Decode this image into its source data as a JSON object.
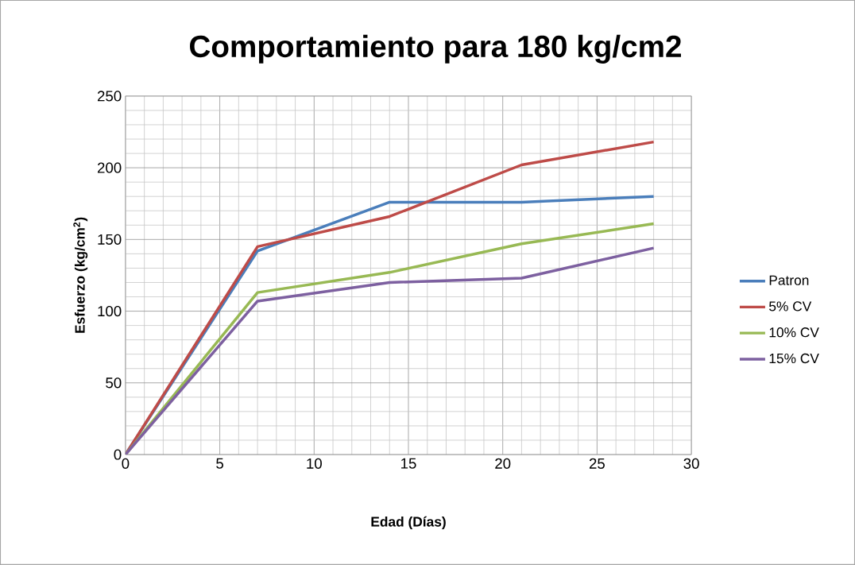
{
  "chart_data": {
    "type": "line",
    "title": "Comportamiento para 180 kg/cm2",
    "xlabel": "Edad (Días)",
    "ylabel": "Esfuerzo (kg/cm$^{2}$)",
    "x": [
      0,
      7,
      14,
      21,
      28
    ],
    "series": [
      {
        "name": "Patron",
        "color": "#4a7ebb",
        "values": [
          0,
          142,
          176,
          176,
          180
        ]
      },
      {
        "name": "5% CV",
        "color": "#be4b48",
        "values": [
          0,
          145,
          166,
          202,
          218
        ]
      },
      {
        "name": "10% CV",
        "color": "#98b954",
        "values": [
          0,
          113,
          127,
          147,
          161
        ]
      },
      {
        "name": "15% CV",
        "color": "#7d60a0",
        "values": [
          0,
          107,
          120,
          123,
          144
        ]
      }
    ],
    "xlim": [
      0,
      30
    ],
    "ylim": [
      0,
      250
    ],
    "xticks": [
      0,
      5,
      10,
      15,
      20,
      25,
      30
    ],
    "yticks": [
      0,
      50,
      100,
      150,
      200,
      250
    ],
    "grid": true,
    "legend": "right",
    "marker": "none",
    "line_style": "solid"
  }
}
